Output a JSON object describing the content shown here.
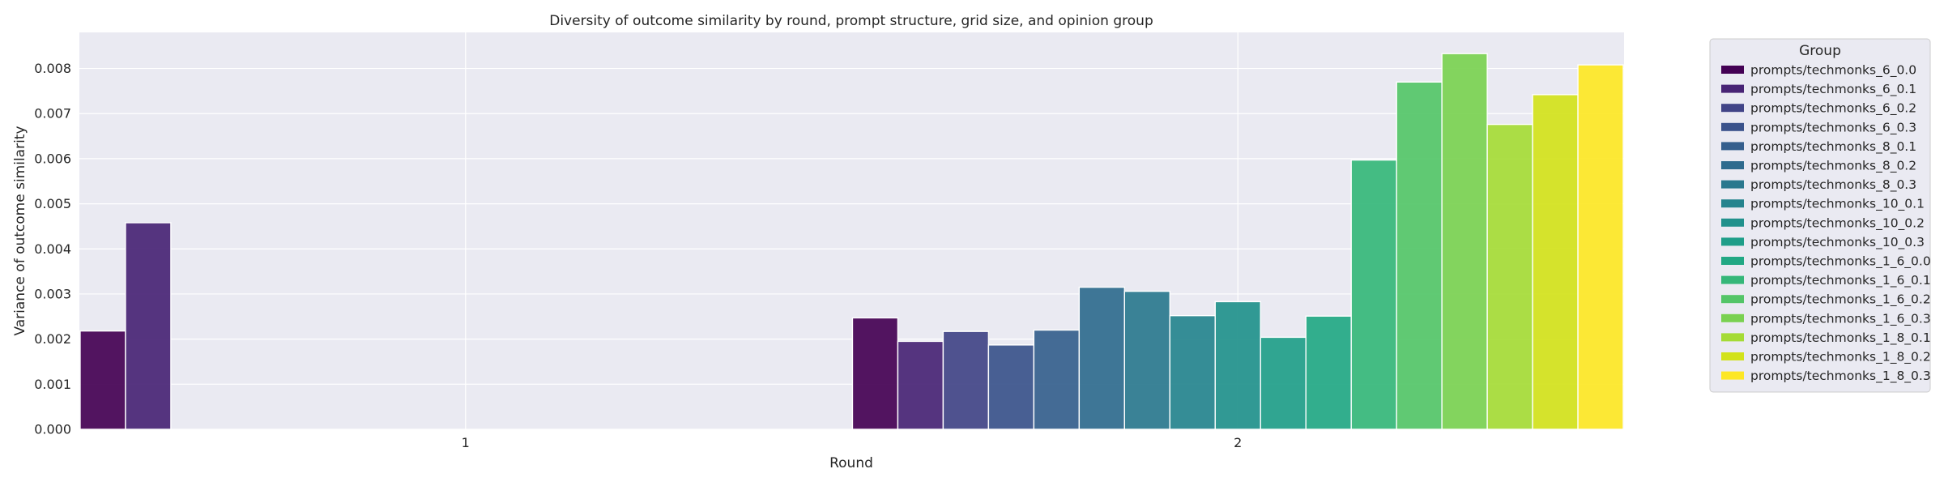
{
  "chart_data": {
    "type": "bar",
    "title": "Diversity of outcome similarity by round, prompt structure, grid size, and opinion group",
    "xlabel": "Round",
    "ylabel": "Variance of outcome similarity",
    "categories": [
      "1",
      "2"
    ],
    "ylim": [
      0,
      0.0088
    ],
    "yticks": [
      "0.000",
      "0.001",
      "0.002",
      "0.003",
      "0.004",
      "0.005",
      "0.006",
      "0.007",
      "0.008"
    ],
    "grid": true,
    "legend": {
      "title": "Group",
      "placement": "outside-right"
    },
    "series": [
      {
        "name": "prompts/techmonks_6_0.0",
        "color": "#440154",
        "values": [
          0.00218,
          0.00247
        ]
      },
      {
        "name": "prompts/techmonks_6_0.1",
        "color": "#482475",
        "values": [
          0.00458,
          0.00195
        ]
      },
      {
        "name": "prompts/techmonks_6_0.2",
        "color": "#414487",
        "values": [
          null,
          0.00217
        ]
      },
      {
        "name": "prompts/techmonks_6_0.3",
        "color": "#3a528b",
        "values": [
          null,
          0.00187
        ]
      },
      {
        "name": "prompts/techmonks_8_0.1",
        "color": "#355f8d",
        "values": [
          null,
          0.0022
        ]
      },
      {
        "name": "prompts/techmonks_8_0.2",
        "color": "#2f6b8e",
        "values": [
          null,
          0.00315
        ]
      },
      {
        "name": "prompts/techmonks_8_0.3",
        "color": "#2a788e",
        "values": [
          null,
          0.00306
        ]
      },
      {
        "name": "prompts/techmonks_10_0.1",
        "color": "#25848e",
        "values": [
          null,
          0.00252
        ]
      },
      {
        "name": "prompts/techmonks_10_0.2",
        "color": "#21918c",
        "values": [
          null,
          0.00283
        ]
      },
      {
        "name": "prompts/techmonks_10_0.3",
        "color": "#1f9e89",
        "values": [
          null,
          0.00204
        ]
      },
      {
        "name": "prompts/techmonks_1_6_0.0",
        "color": "#22a884",
        "values": [
          null,
          0.00251
        ]
      },
      {
        "name": "prompts/techmonks_1_6_0.1",
        "color": "#35b779",
        "values": [
          null,
          0.00597
        ]
      },
      {
        "name": "prompts/techmonks_1_6_0.2",
        "color": "#54c568",
        "values": [
          null,
          0.0077
        ]
      },
      {
        "name": "prompts/techmonks_1_6_0.3",
        "color": "#7ad151",
        "values": [
          null,
          0.00833
        ]
      },
      {
        "name": "prompts/techmonks_1_8_0.1",
        "color": "#a5db36",
        "values": [
          null,
          0.00676
        ]
      },
      {
        "name": "prompts/techmonks_1_8_0.2",
        "color": "#d2e21b",
        "values": [
          null,
          0.00742
        ]
      },
      {
        "name": "prompts/techmonks_1_8_0.3",
        "color": "#fde725",
        "values": [
          null,
          0.00808
        ]
      }
    ]
  }
}
